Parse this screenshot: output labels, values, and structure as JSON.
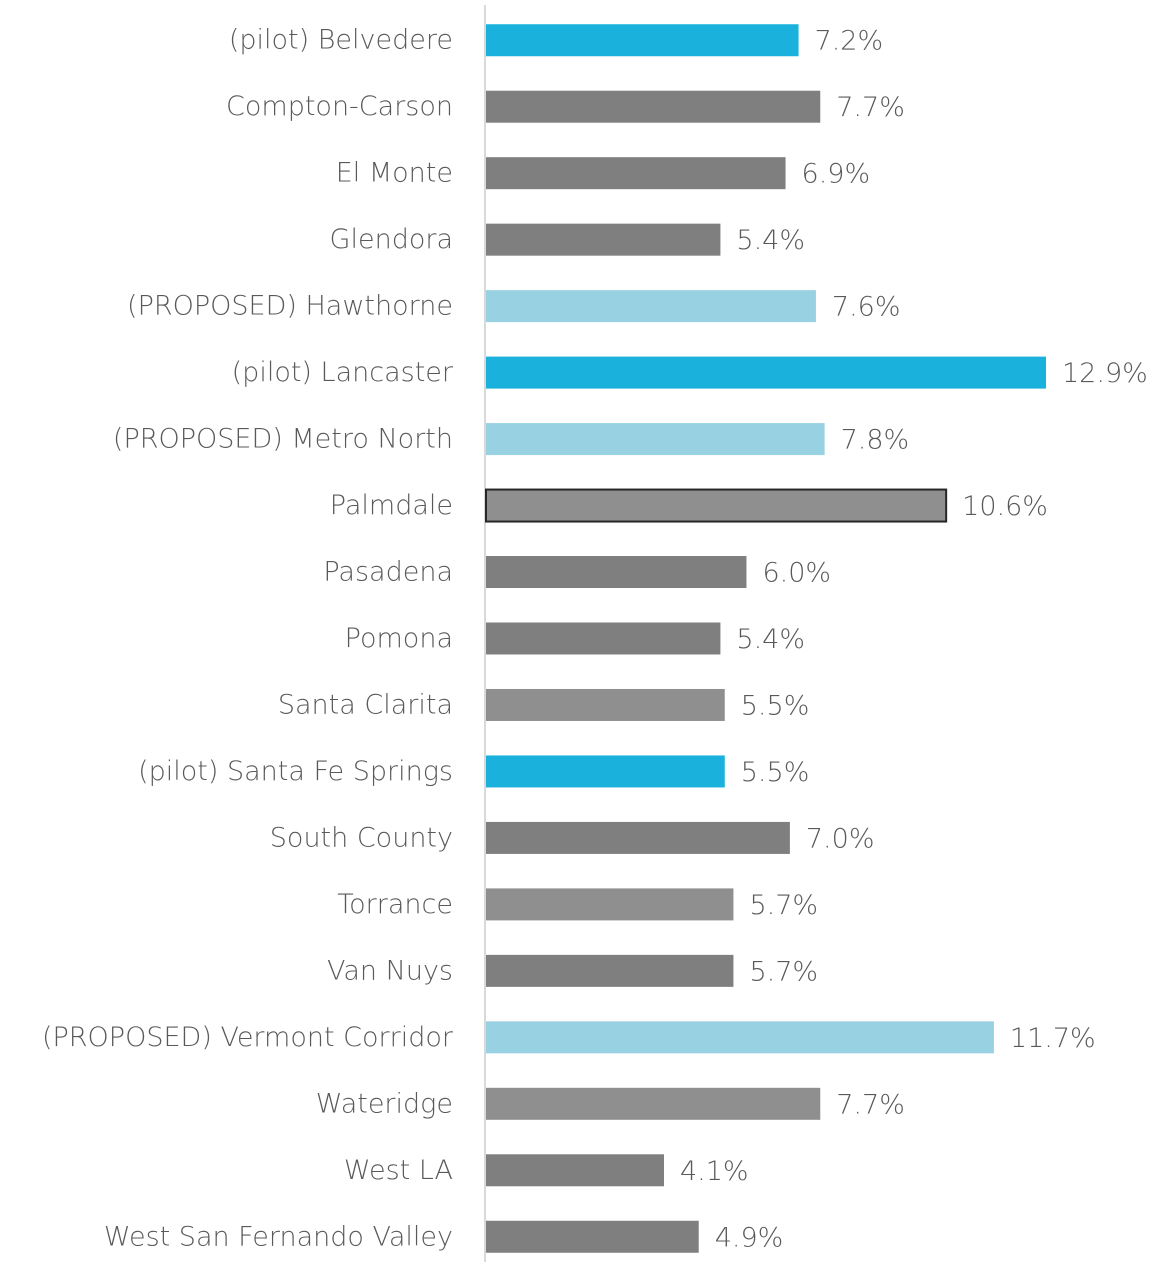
{
  "chart_data": {
    "type": "barh",
    "categories": [
      "(pilot) Belvedere",
      "Compton-Carson",
      "El Monte",
      "Glendora",
      "(PROPOSED) Hawthorne",
      "(pilot) Lancaster",
      "(PROPOSED) Metro North",
      "Palmdale",
      "Pasadena",
      "Pomona",
      "Santa Clarita",
      "(pilot) Santa Fe Springs",
      "South County",
      "Torrance",
      "Van Nuys",
      "(PROPOSED) Vermont Corridor",
      "Wateridge",
      "West LA",
      "West San Fernando Valley"
    ],
    "values": [
      7.2,
      7.7,
      6.9,
      5.4,
      7.6,
      12.9,
      7.8,
      10.6,
      6.0,
      5.4,
      5.5,
      5.5,
      7.0,
      5.7,
      5.7,
      11.7,
      7.7,
      4.1,
      4.9
    ],
    "value_labels": [
      "7.2%",
      "7.7%",
      "6.9%",
      "5.4%",
      "7.6%",
      "12.9%",
      "7.8%",
      "10.6%",
      "6.0%",
      "5.4%",
      "5.5%",
      "5.5%",
      "7.0%",
      "5.7%",
      "5.7%",
      "11.7%",
      "7.7%",
      "4.1%",
      "4.9%"
    ],
    "colors": [
      "#1ab2dc",
      "#7f7f7f",
      "#7f7f7f",
      "#7f7f7f",
      "#98d1e2",
      "#1ab2dc",
      "#98d1e2",
      "#8f8f8f",
      "#7f7f7f",
      "#7f7f7f",
      "#8f8f8f",
      "#1ab2dc",
      "#7f7f7f",
      "#8f8f8f",
      "#7f7f7f",
      "#98d1e2",
      "#8f8f8f",
      "#7f7f7f",
      "#7f7f7f"
    ],
    "edgecolors": [
      "none",
      "none",
      "none",
      "none",
      "none",
      "none",
      "none",
      "#262626",
      "none",
      "none",
      "none",
      "none",
      "none",
      "none",
      "none",
      "none",
      "none",
      "none",
      "none"
    ]
  }
}
